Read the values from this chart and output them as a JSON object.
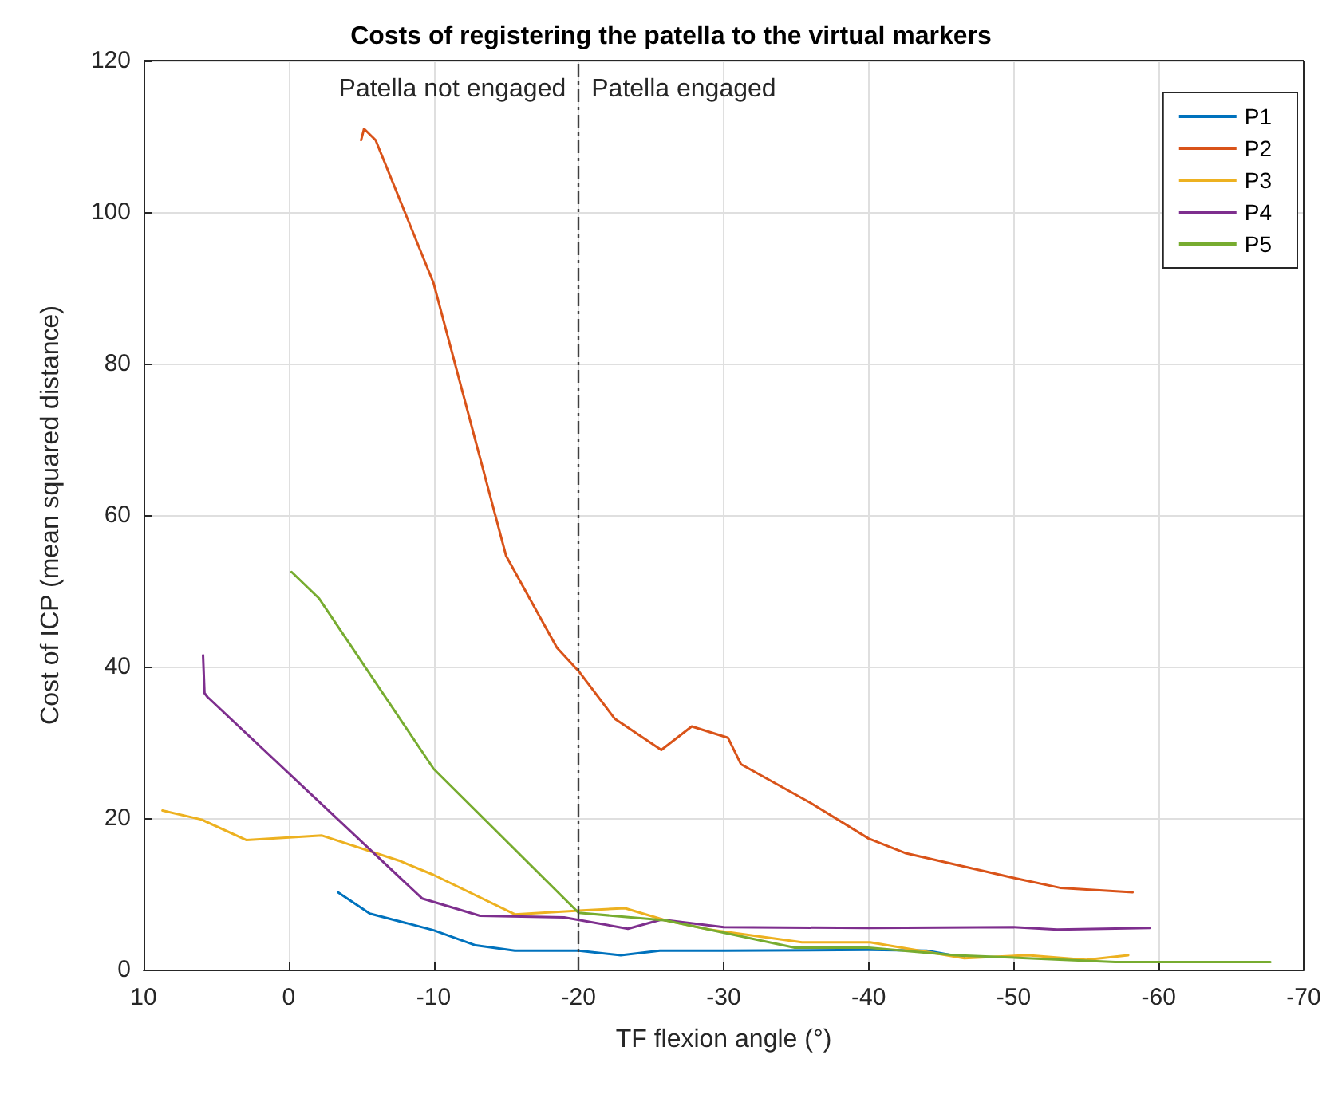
{
  "chart_data": {
    "type": "line",
    "title": "Costs of registering the patella to the virtual markers",
    "xlabel": "TF flexion angle (°)",
    "ylabel": "Cost of ICP (mean squared distance)",
    "xlim": [
      10,
      -70
    ],
    "xticks": [
      10,
      0,
      -10,
      -20,
      -30,
      -40,
      -50,
      -60,
      -70
    ],
    "ylim": [
      0,
      120
    ],
    "yticks": [
      0,
      20,
      40,
      60,
      80,
      100,
      120
    ],
    "grid": true,
    "legend": "top right",
    "marker": "none",
    "line_style": "solid",
    "ref_lines": [
      {
        "axis": "x",
        "value": -20,
        "color": "#404040",
        "line_style": "dashed"
      }
    ],
    "annotations": [
      "Patella not engaged",
      "Patella engaged"
    ],
    "series": [
      {
        "name": "P1",
        "color": "#0072bd",
        "x": [
          -3.4,
          -5.6,
          -10,
          -12.9,
          -15.6,
          -20,
          -22.9,
          -25.6,
          -30,
          -40,
          -44,
          -46.6
        ],
        "values": [
          10.2,
          7.4,
          5.2,
          3.2,
          2.5,
          2.5,
          1.9,
          2.5,
          2.5,
          2.6,
          2.5,
          1.6
        ]
      },
      {
        "name": "P2",
        "color": "#d95319",
        "x": [
          -5.0,
          -5.2,
          -6.0,
          -10,
          -15,
          -18.5,
          -20,
          -22.5,
          -25.7,
          -27.8,
          -30.3,
          -31.2,
          -36,
          -40,
          -42.5,
          -50,
          -53.2,
          -58.2
        ],
        "values": [
          109.5,
          111,
          109.5,
          90.6,
          54.6,
          42.5,
          39.4,
          33.1,
          29.0,
          32.1,
          30.6,
          27.1,
          22,
          17.3,
          15.4,
          12.1,
          10.8,
          10.2
        ]
      },
      {
        "name": "P3",
        "color": "#edb120",
        "x": [
          8.7,
          6.0,
          2.9,
          -2.3,
          -7.6,
          -10,
          -15.6,
          -20,
          -23.2,
          -26,
          -29,
          -35.4,
          -40.1,
          -46.6,
          -51,
          -55,
          -57.9
        ],
        "values": [
          21,
          19.8,
          17.1,
          17.7,
          14.4,
          12.5,
          7.3,
          7.8,
          8.1,
          6.5,
          5.3,
          3.6,
          3.6,
          1.5,
          1.9,
          1.3,
          1.9
        ]
      },
      {
        "name": "P4",
        "color": "#7e2f8e",
        "x": [
          5.9,
          5.8,
          5.6,
          -9.2,
          -13.2,
          -19,
          -23.4,
          -25.7,
          -30,
          -40,
          -50,
          -53,
          -59.4
        ],
        "values": [
          41.5,
          36.5,
          36,
          9.4,
          7.1,
          6.9,
          5.4,
          6.6,
          5.6,
          5.5,
          5.6,
          5.3,
          5.5
        ]
      },
      {
        "name": "P5",
        "color": "#77ac30",
        "x": [
          -0.2,
          -2.1,
          -10,
          -20,
          -26,
          -34.9,
          -40,
          -46,
          -57,
          -67.7
        ],
        "values": [
          52.5,
          49,
          26.5,
          7.5,
          6.5,
          2.9,
          2.9,
          1.9,
          1.0,
          1.0
        ]
      }
    ]
  }
}
